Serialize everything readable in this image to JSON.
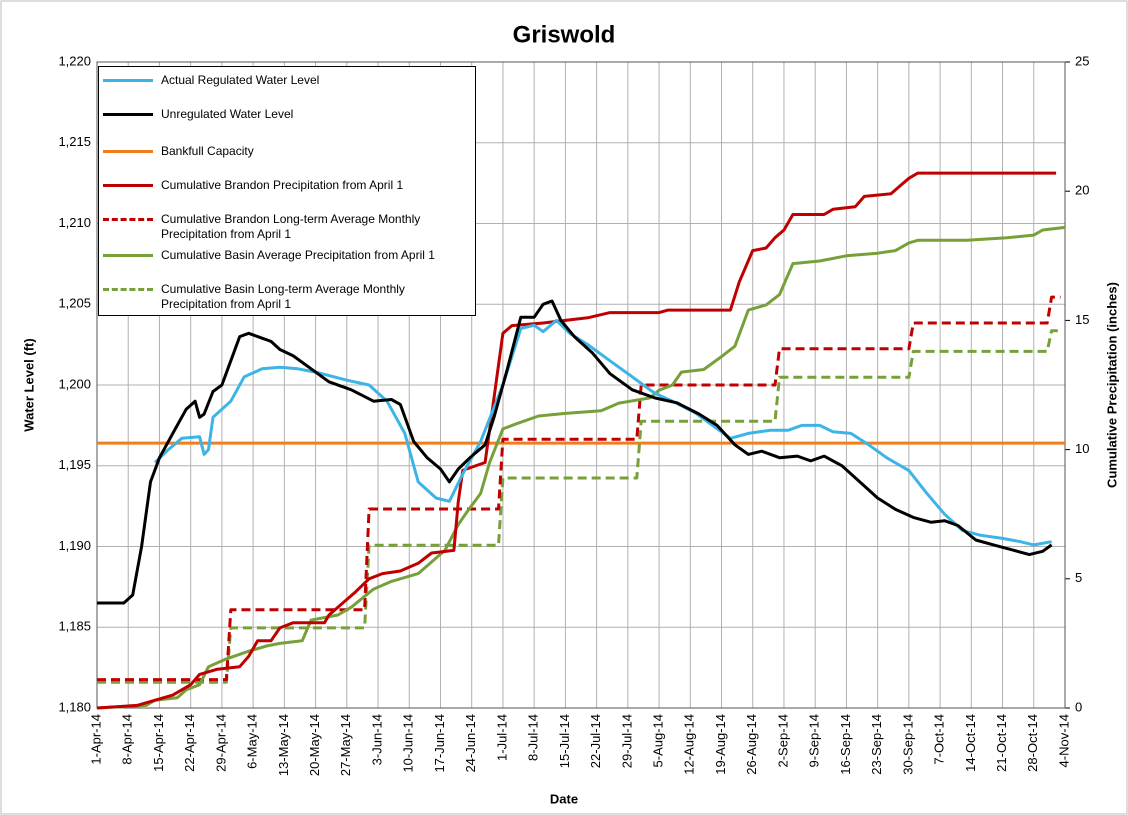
{
  "chart_data": {
    "type": "line",
    "title": "Griswold",
    "xlabel": "Date",
    "ylabel": "Water Level (ft)",
    "y2label": "Cumulative Precipitation (inches)",
    "xlim": [
      "2014-04-01",
      "2014-11-04"
    ],
    "xticks": [
      {
        "value": "2014-04-01",
        "label": "1-Apr-14"
      },
      {
        "value": "2014-04-08",
        "label": "8-Apr-14"
      },
      {
        "value": "2014-04-15",
        "label": "15-Apr-14"
      },
      {
        "value": "2014-04-22",
        "label": "22-Apr-14"
      },
      {
        "value": "2014-04-29",
        "label": "29-Apr-14"
      },
      {
        "value": "2014-05-06",
        "label": "6-May-14"
      },
      {
        "value": "2014-05-13",
        "label": "13-May-14"
      },
      {
        "value": "2014-05-20",
        "label": "20-May-14"
      },
      {
        "value": "2014-05-27",
        "label": "27-May-14"
      },
      {
        "value": "2014-06-03",
        "label": "3-Jun-14"
      },
      {
        "value": "2014-06-10",
        "label": "10-Jun-14"
      },
      {
        "value": "2014-06-17",
        "label": "17-Jun-14"
      },
      {
        "value": "2014-06-24",
        "label": "24-Jun-14"
      },
      {
        "value": "2014-07-01",
        "label": "1-Jul-14"
      },
      {
        "value": "2014-07-08",
        "label": "8-Jul-14"
      },
      {
        "value": "2014-07-15",
        "label": "15-Jul-14"
      },
      {
        "value": "2014-07-22",
        "label": "22-Jul-14"
      },
      {
        "value": "2014-07-29",
        "label": "29-Jul-14"
      },
      {
        "value": "2014-08-05",
        "label": "5-Aug-14"
      },
      {
        "value": "2014-08-12",
        "label": "12-Aug-14"
      },
      {
        "value": "2014-08-19",
        "label": "19-Aug-14"
      },
      {
        "value": "2014-08-26",
        "label": "26-Aug-14"
      },
      {
        "value": "2014-09-02",
        "label": "2-Sep-14"
      },
      {
        "value": "2014-09-09",
        "label": "9-Sep-14"
      },
      {
        "value": "2014-09-16",
        "label": "16-Sep-14"
      },
      {
        "value": "2014-09-23",
        "label": "23-Sep-14"
      },
      {
        "value": "2014-09-30",
        "label": "30-Sep-14"
      },
      {
        "value": "2014-10-07",
        "label": "7-Oct-14"
      },
      {
        "value": "2014-10-14",
        "label": "14-Oct-14"
      },
      {
        "value": "2014-10-21",
        "label": "21-Oct-14"
      },
      {
        "value": "2014-10-28",
        "label": "28-Oct-14"
      },
      {
        "value": "2014-11-04",
        "label": "4-Nov-14"
      }
    ],
    "ylim": [
      1180,
      1220
    ],
    "yticks": [
      {
        "value": 1180,
        "label": "1,180"
      },
      {
        "value": 1185,
        "label": "1,185"
      },
      {
        "value": 1190,
        "label": "1,190"
      },
      {
        "value": 1195,
        "label": "1,195"
      },
      {
        "value": 1200,
        "label": "1,200"
      },
      {
        "value": 1205,
        "label": "1,205"
      },
      {
        "value": 1210,
        "label": "1,210"
      },
      {
        "value": 1215,
        "label": "1,215"
      },
      {
        "value": 1220,
        "label": "1,220"
      }
    ],
    "y2lim": [
      0,
      25
    ],
    "y2ticks": [
      0,
      5,
      10,
      15,
      20,
      25
    ],
    "grid": true,
    "legend": "upper left",
    "series": [
      {
        "name": "Actual Regulated Water Level",
        "color": "#3cb4e6",
        "dash": false,
        "x": [
          "2014-04-14",
          "2014-04-17",
          "2014-04-20",
          "2014-04-24",
          "2014-04-25",
          "2014-04-26",
          "2014-04-27",
          "2014-05-01",
          "2014-05-04",
          "2014-05-08",
          "2014-05-12",
          "2014-05-16",
          "2014-05-20",
          "2014-05-27",
          "2014-06-01",
          "2014-06-05",
          "2014-06-09",
          "2014-06-12",
          "2014-06-16",
          "2014-06-19",
          "2014-06-22",
          "2014-06-26",
          "2014-07-01",
          "2014-07-05",
          "2014-07-08",
          "2014-07-10",
          "2014-07-13",
          "2014-07-16",
          "2014-07-20",
          "2014-07-25",
          "2014-07-30",
          "2014-08-04",
          "2014-08-08",
          "2014-08-13",
          "2014-08-17",
          "2014-08-21",
          "2014-08-25",
          "2014-08-30",
          "2014-09-03",
          "2014-09-06",
          "2014-09-10",
          "2014-09-13",
          "2014-09-17",
          "2014-09-21",
          "2014-09-25",
          "2014-09-30",
          "2014-10-04",
          "2014-10-08",
          "2014-10-12",
          "2014-10-16",
          "2014-10-21",
          "2014-10-25",
          "2014-10-28",
          "2014-11-01"
        ],
        "values": [
          1195.2,
          1196,
          1196.7,
          1196.8,
          1195.7,
          1196,
          1198,
          1199,
          1200.5,
          1201,
          1201.1,
          1201,
          1200.8,
          1200.3,
          1200,
          1199,
          1197,
          1194,
          1193,
          1192.8,
          1194.5,
          1196.5,
          1200,
          1203.5,
          1203.7,
          1203.3,
          1204,
          1203.2,
          1202.5,
          1201.5,
          1200.5,
          1199.5,
          1199,
          1198.3,
          1197.5,
          1196.7,
          1197,
          1197.2,
          1197.2,
          1197.5,
          1197.5,
          1197.1,
          1197,
          1196.3,
          1195.5,
          1194.7,
          1193.3,
          1192,
          1191,
          1190.7,
          1190.5,
          1190.3,
          1190.1,
          1190.3
        ]
      },
      {
        "name": "Unregulated Water Level",
        "color": "#000000",
        "dash": false,
        "x": [
          "2014-04-01",
          "2014-04-07",
          "2014-04-09",
          "2014-04-11",
          "2014-04-13",
          "2014-04-15",
          "2014-04-18",
          "2014-04-21",
          "2014-04-23",
          "2014-04-24",
          "2014-04-25",
          "2014-04-27",
          "2014-04-29",
          "2014-05-01",
          "2014-05-03",
          "2014-05-05",
          "2014-05-08",
          "2014-05-10",
          "2014-05-12",
          "2014-05-15",
          "2014-05-19",
          "2014-05-23",
          "2014-05-28",
          "2014-06-02",
          "2014-06-06",
          "2014-06-08",
          "2014-06-11",
          "2014-06-14",
          "2014-06-17",
          "2014-06-19",
          "2014-06-21",
          "2014-06-24",
          "2014-06-27",
          "2014-06-29",
          "2014-07-02",
          "2014-07-05",
          "2014-07-08",
          "2014-07-10",
          "2014-07-12",
          "2014-07-14",
          "2014-07-17",
          "2014-07-21",
          "2014-07-25",
          "2014-07-30",
          "2014-08-04",
          "2014-08-09",
          "2014-08-14",
          "2014-08-18",
          "2014-08-22",
          "2014-08-25",
          "2014-08-28",
          "2014-09-01",
          "2014-09-05",
          "2014-09-08",
          "2014-09-11",
          "2014-09-15",
          "2014-09-19",
          "2014-09-23",
          "2014-09-27",
          "2014-10-01",
          "2014-10-05",
          "2014-10-08",
          "2014-10-11",
          "2014-10-15",
          "2014-10-19",
          "2014-10-23",
          "2014-10-27",
          "2014-10-30",
          "2014-11-01"
        ],
        "values": [
          1186.5,
          1186.5,
          1187,
          1190,
          1194,
          1195.5,
          1197,
          1198.5,
          1199,
          1198,
          1198.2,
          1199.6,
          1200,
          1201.5,
          1203,
          1203.2,
          1202.9,
          1202.7,
          1202.2,
          1201.8,
          1201,
          1200.2,
          1199.7,
          1199,
          1199.1,
          1198.8,
          1196.5,
          1195.5,
          1194.8,
          1194,
          1194.8,
          1195.6,
          1196.3,
          1198,
          1201,
          1204.2,
          1204.2,
          1205,
          1205.2,
          1204,
          1203,
          1202,
          1200.7,
          1199.7,
          1199.2,
          1198.9,
          1198.2,
          1197.5,
          1196.3,
          1195.7,
          1195.9,
          1195.5,
          1195.6,
          1195.3,
          1195.6,
          1195,
          1194,
          1193,
          1192.3,
          1191.8,
          1191.5,
          1191.6,
          1191.3,
          1190.4,
          1190.1,
          1189.8,
          1189.5,
          1189.7,
          1190.1
        ]
      },
      {
        "name": "Bankfull Capacity",
        "color": "#f07d1e",
        "dash": false,
        "x": [
          "2014-04-01",
          "2014-11-04"
        ],
        "values": [
          1196.4,
          1196.4
        ]
      },
      {
        "name": "Cumulative Brandon Precipitation from April 1",
        "color": "#c00000",
        "dash": false,
        "axis": "y2",
        "x": [
          "2014-04-01",
          "2014-04-10",
          "2014-04-18",
          "2014-04-22",
          "2014-04-24",
          "2014-04-28",
          "2014-05-03",
          "2014-05-05",
          "2014-05-07",
          "2014-05-10",
          "2014-05-12",
          "2014-05-15",
          "2014-05-22",
          "2014-05-23",
          "2014-05-29",
          "2014-06-01",
          "2014-06-04",
          "2014-06-08",
          "2014-06-12",
          "2014-06-15",
          "2014-06-20",
          "2014-06-21",
          "2014-06-22",
          "2014-06-27",
          "2014-06-29",
          "2014-07-01",
          "2014-07-03",
          "2014-07-10",
          "2014-07-20",
          "2014-07-25",
          "2014-08-05",
          "2014-08-07",
          "2014-08-21",
          "2014-08-23",
          "2014-08-26",
          "2014-08-29",
          "2014-08-31",
          "2014-09-02",
          "2014-09-04",
          "2014-09-11",
          "2014-09-13",
          "2014-09-18",
          "2014-09-20",
          "2014-09-26",
          "2014-09-28",
          "2014-09-30",
          "2014-10-02",
          "2014-11-02"
        ],
        "values": [
          0,
          0.1,
          0.5,
          0.9,
          1.3,
          1.5,
          1.6,
          2.0,
          2.6,
          2.6,
          3.1,
          3.3,
          3.3,
          3.6,
          4.5,
          5.0,
          5.2,
          5.3,
          5.6,
          6.0,
          6.1,
          8,
          9.2,
          9.5,
          12,
          14.5,
          14.8,
          14.9,
          15.1,
          15.3,
          15.3,
          15.4,
          15.4,
          16.5,
          17.7,
          17.8,
          18.2,
          18.5,
          19.1,
          19.1,
          19.3,
          19.4,
          19.8,
          19.9,
          20.2,
          20.5,
          20.7,
          20.7
        ]
      },
      {
        "name": "Cumulative Brandon Long-term Average Monthly Precipitation from April 1",
        "color": "#c00000",
        "dash": true,
        "axis": "y2",
        "x": [
          "2014-04-01",
          "2014-04-30",
          "2014-05-01",
          "2014-05-31",
          "2014-06-01",
          "2014-06-30",
          "2014-07-01",
          "2014-07-31",
          "2014-08-01",
          "2014-08-31",
          "2014-09-01",
          "2014-09-30",
          "2014-10-01",
          "2014-10-31",
          "2014-11-01",
          "2014-11-03"
        ],
        "values": [
          1.1,
          1.1,
          3.8,
          3.8,
          7.7,
          7.7,
          10.4,
          10.4,
          12.5,
          12.5,
          13.9,
          13.9,
          14.9,
          14.9,
          15.9,
          15.9
        ]
      },
      {
        "name": "Cumulative Basin Average Precipitation from April 1",
        "color": "#77a03a",
        "dash": false,
        "axis": "y2",
        "x": [
          "2014-04-01",
          "2014-04-12",
          "2014-04-14",
          "2014-04-19",
          "2014-04-21",
          "2014-04-24",
          "2014-04-26",
          "2014-04-30",
          "2014-05-05",
          "2014-05-09",
          "2014-05-12",
          "2014-05-17",
          "2014-05-19",
          "2014-05-25",
          "2014-05-28",
          "2014-06-02",
          "2014-06-06",
          "2014-06-12",
          "2014-06-16",
          "2014-06-18",
          "2014-06-21",
          "2014-06-23",
          "2014-06-26",
          "2014-06-28",
          "2014-07-01",
          "2014-07-04",
          "2014-07-09",
          "2014-07-15",
          "2014-07-23",
          "2014-07-27",
          "2014-08-03",
          "2014-08-05",
          "2014-08-08",
          "2014-08-10",
          "2014-08-15",
          "2014-08-19",
          "2014-08-22",
          "2014-08-25",
          "2014-08-29",
          "2014-09-01",
          "2014-09-04",
          "2014-09-10",
          "2014-09-16",
          "2014-09-23",
          "2014-09-27",
          "2014-09-30",
          "2014-10-02",
          "2014-10-13",
          "2014-10-22",
          "2014-10-28",
          "2014-10-30",
          "2014-11-04"
        ],
        "values": [
          0,
          0.1,
          0.3,
          0.4,
          0.7,
          0.9,
          1.6,
          1.9,
          2.2,
          2.4,
          2.5,
          2.6,
          3.4,
          3.6,
          3.9,
          4.6,
          4.9,
          5.2,
          5.8,
          6.1,
          7.1,
          7.6,
          8.3,
          9.5,
          10.8,
          11.0,
          11.3,
          11.4,
          11.5,
          11.8,
          12.0,
          12.3,
          12.5,
          13.0,
          13.1,
          13.6,
          14.0,
          15.4,
          15.6,
          16.0,
          17.2,
          17.3,
          17.5,
          17.6,
          17.7,
          18.0,
          18.1,
          18.1,
          18.2,
          18.3,
          18.5,
          18.6
        ]
      },
      {
        "name": "Cumulative Basin Long-term Average Monthly Precipitation from April 1",
        "color": "#77a03a",
        "dash": true,
        "axis": "y2",
        "x": [
          "2014-04-01",
          "2014-04-30",
          "2014-05-01",
          "2014-05-31",
          "2014-06-01",
          "2014-06-30",
          "2014-07-01",
          "2014-07-31",
          "2014-08-01",
          "2014-08-31",
          "2014-09-01",
          "2014-09-30",
          "2014-10-01",
          "2014-10-31",
          "2014-11-01",
          "2014-11-03"
        ],
        "values": [
          1.0,
          1.0,
          3.1,
          3.1,
          6.3,
          6.3,
          8.9,
          8.9,
          11.1,
          11.1,
          12.8,
          12.8,
          13.8,
          13.8,
          14.6,
          14.6
        ]
      }
    ]
  }
}
